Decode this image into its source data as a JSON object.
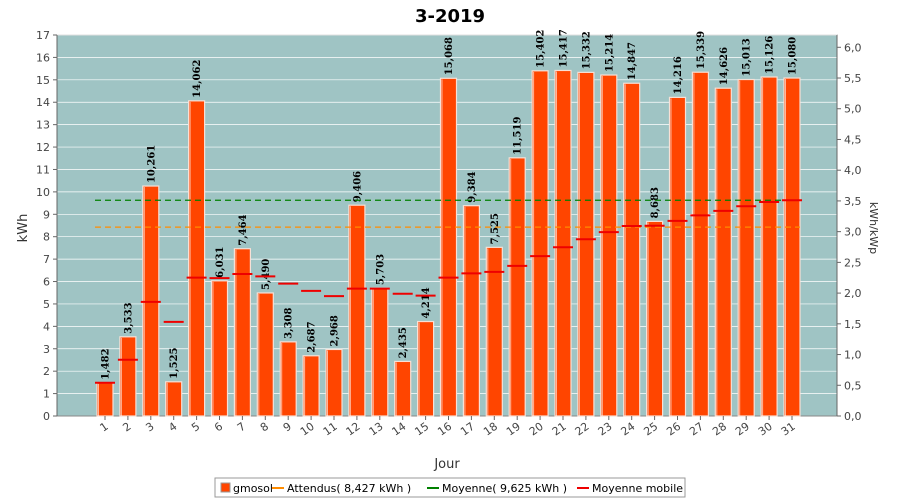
{
  "chart_data": {
    "type": "bar",
    "title": "3-2019",
    "xlabel": "Jour",
    "ylabel": "kWh",
    "y2label": "kWh/kWp",
    "ylim": [
      0,
      17
    ],
    "y2lim": [
      0,
      6.0
    ],
    "categories": [
      "1",
      "2",
      "3",
      "4",
      "5",
      "6",
      "7",
      "8",
      "9",
      "10",
      "11",
      "12",
      "13",
      "14",
      "15",
      "16",
      "17",
      "18",
      "19",
      "20",
      "21",
      "22",
      "23",
      "24",
      "25",
      "26",
      "27",
      "28",
      "29",
      "30",
      "31"
    ],
    "series": [
      {
        "name": "gmosol",
        "type": "bar",
        "color": "#ff4500",
        "values": [
          1.482,
          3.533,
          10.261,
          1.525,
          14.062,
          6.031,
          7.464,
          5.49,
          3.308,
          2.687,
          2.968,
          9.406,
          5.703,
          2.435,
          4.214,
          15.068,
          9.384,
          7.525,
          11.519,
          15.402,
          15.417,
          15.332,
          15.214,
          14.847,
          8.683,
          14.216,
          15.339,
          14.626,
          15.013,
          15.126,
          15.08
        ],
        "labels": [
          "1,482",
          "3,533",
          "10,261",
          "1,525",
          "14,062",
          "6,031",
          "7,464",
          "5,490",
          "3,308",
          "2,687",
          "2,968",
          "9,406",
          "5,703",
          "2,435",
          "4,214",
          "15,068",
          "9,384",
          "7,525",
          "11,519",
          "15,402",
          "15,417",
          "15,332",
          "15,214",
          "14,847",
          "8,683",
          "14,216",
          "15,339",
          "14,626",
          "15,013",
          "15,126",
          "15,080"
        ]
      },
      {
        "name": "Moyenne mobile",
        "type": "step",
        "color": "#ee0000",
        "values": [
          1.482,
          2.508,
          5.092,
          4.2,
          6.173,
          6.15,
          6.337,
          6.231,
          5.906,
          5.584,
          5.346,
          5.684,
          5.685,
          5.453,
          5.37,
          6.176,
          6.365,
          6.429,
          6.701,
          7.136,
          7.53,
          7.884,
          8.202,
          8.479,
          8.487,
          8.707,
          8.953,
          9.155,
          9.357,
          9.55,
          9.625
        ]
      }
    ],
    "reference_lines": [
      {
        "name": "Attendus( 8,427 kWh )",
        "value": 8.427,
        "color": "#ff8c00",
        "style": "dashed"
      },
      {
        "name": "Moyenne( 9,625 kWh )",
        "value": 9.625,
        "color": "#008000",
        "style": "dashed"
      }
    ],
    "y2_ticks": [
      "0,0",
      "0,5",
      "1,0",
      "1,5",
      "2,0",
      "2,5",
      "3,0",
      "3,5",
      "4,0",
      "4,5",
      "5,0",
      "5,5",
      "6,0"
    ],
    "legend": {
      "position": "bottom",
      "items": [
        {
          "label": "gmosol",
          "color": "#ff4500",
          "kind": "box"
        },
        {
          "label": "Attendus( 8,427 kWh )",
          "color": "#ff8c00",
          "kind": "line"
        },
        {
          "label": "Moyenne( 9,625 kWh )",
          "color": "#008000",
          "kind": "line"
        },
        {
          "label": "Moyenne mobile",
          "color": "#ee0000",
          "kind": "line"
        }
      ]
    },
    "plot_background": "#9fc4c4",
    "grid": true
  }
}
